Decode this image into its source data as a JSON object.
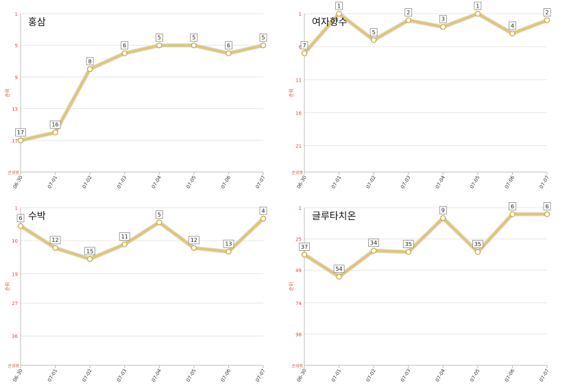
{
  "chart_data": [
    {
      "type": "line",
      "title": "홍삼",
      "ylabel": "순위",
      "y_bottom_label": "순위밖",
      "y_reversed": true,
      "ylim": [
        1,
        21
      ],
      "yticks": [
        1,
        5,
        9,
        13,
        17
      ],
      "x": [
        "06-30",
        "07-01",
        "07-02",
        "07-03",
        "07-04",
        "07-05",
        "07-06",
        "07-07"
      ],
      "values": [
        17,
        16,
        8,
        6,
        5,
        5,
        6,
        5
      ]
    },
    {
      "type": "line",
      "title": "여자향수",
      "ylabel": "순위",
      "y_bottom_label": "순위밖",
      "y_reversed": true,
      "ylim": [
        1,
        25
      ],
      "yticks": [
        1,
        6,
        11,
        16,
        21
      ],
      "x": [
        "06-30",
        "07-01",
        "07-02",
        "07-03",
        "07-04",
        "07-05",
        "07-06",
        "07-07"
      ],
      "values": [
        7,
        1,
        5,
        2,
        3,
        1,
        4,
        2
      ]
    },
    {
      "type": "line",
      "title": "수박",
      "ylabel": "순위",
      "y_bottom_label": "순위밖",
      "y_reversed": true,
      "ylim": [
        1,
        44
      ],
      "yticks": [
        1,
        10,
        19,
        27,
        36
      ],
      "x": [
        "06-30",
        "07-01",
        "07-02",
        "07-03",
        "07-04",
        "07-05",
        "07-06",
        "07-07"
      ],
      "values": [
        6,
        12,
        15,
        11,
        5,
        12,
        13,
        4
      ]
    },
    {
      "type": "line",
      "title": "글루타치온",
      "ylabel": "순위",
      "y_bottom_label": "순위밖",
      "y_reversed": true,
      "ylim": [
        1,
        122
      ],
      "yticks": [
        1,
        25,
        49,
        74,
        98
      ],
      "x": [
        "06-30",
        "07-01",
        "07-02",
        "07-03",
        "07-04",
        "07-05",
        "07-06",
        "07-07"
      ],
      "values": [
        37,
        54,
        34,
        35,
        9,
        35,
        6,
        6
      ]
    }
  ]
}
